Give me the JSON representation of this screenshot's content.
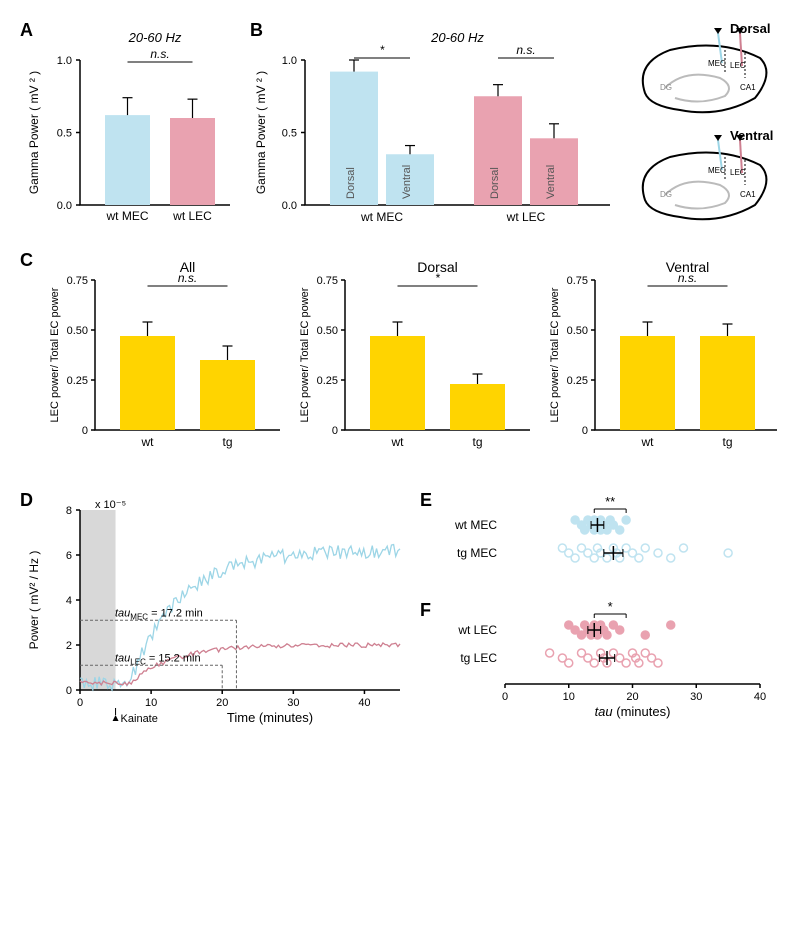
{
  "colors": {
    "mec_blue": "#bfe3f0",
    "lec_pink": "#e9a2b0",
    "yellow": "#ffd400",
    "grey": "#d8d8d8",
    "black": "#000000",
    "mec_line": "#9cd5e6",
    "lec_line": "#ce7f90"
  },
  "panelA": {
    "label": "A",
    "title": "20-60 Hz",
    "ylabel": "Gamma Power ( mV ² )",
    "ymax": 1.0,
    "yticks": [
      0,
      0.5,
      1.0
    ],
    "sig": "n.s.",
    "bars": [
      {
        "cat": "wt MEC",
        "val": 0.62,
        "err": 0.12,
        "color": "#bfe3f0"
      },
      {
        "cat": "wt LEC",
        "val": 0.6,
        "err": 0.13,
        "color": "#e9a2b0"
      }
    ]
  },
  "panelB": {
    "label": "B",
    "title": "20-60 Hz",
    "ylabel": "Gamma Power ( mV ² )",
    "ymax": 1.0,
    "yticks": [
      0,
      0.5,
      1.0
    ],
    "groups": [
      {
        "name": "wt MEC",
        "sig": "*",
        "bars": [
          {
            "cat": "Dorsal",
            "val": 0.92,
            "err": 0.08,
            "color": "#bfe3f0"
          },
          {
            "cat": "Ventral",
            "val": 0.35,
            "err": 0.06,
            "color": "#bfe3f0"
          }
        ]
      },
      {
        "name": "wt LEC",
        "sig": "n.s.",
        "bars": [
          {
            "cat": "Dorsal",
            "val": 0.75,
            "err": 0.08,
            "color": "#e9a2b0"
          },
          {
            "cat": "Ventral",
            "val": 0.46,
            "err": 0.1,
            "color": "#e9a2b0"
          }
        ]
      }
    ],
    "diagramLabels": {
      "dorsal": "Dorsal",
      "ventral": "Ventral",
      "mec": "MEC",
      "lec": "LEC",
      "ca1": "CA1",
      "dg": "DG"
    }
  },
  "panelC": {
    "label": "C",
    "ylabel": "LEC power/ Total EC power",
    "ymax": 0.75,
    "yticks": [
      0,
      0.25,
      0.5,
      0.75
    ],
    "sub": [
      {
        "title": "All",
        "sig": "n.s.",
        "bars": [
          {
            "cat": "wt",
            "val": 0.47,
            "err": 0.07
          },
          {
            "cat": "tg",
            "val": 0.35,
            "err": 0.07
          }
        ]
      },
      {
        "title": "Dorsal",
        "sig": "*",
        "bars": [
          {
            "cat": "wt",
            "val": 0.47,
            "err": 0.07
          },
          {
            "cat": "tg",
            "val": 0.23,
            "err": 0.05
          }
        ]
      },
      {
        "title": "Ventral",
        "sig": "n.s.",
        "bars": [
          {
            "cat": "wt",
            "val": 0.47,
            "err": 0.07
          },
          {
            "cat": "tg",
            "val": 0.47,
            "err": 0.06
          }
        ]
      }
    ],
    "barColor": "#ffd400"
  },
  "panelD": {
    "label": "D",
    "ylabel": "Power ( mV² / Hz )",
    "xlabel": "Time (minutes)",
    "yscaleText": "x 10⁻⁵",
    "ymax": 8,
    "yticks": [
      0,
      2,
      4,
      6,
      8
    ],
    "xmax": 45,
    "xticks": [
      0,
      10,
      20,
      30,
      40
    ],
    "kainateLabel": "Kainate",
    "kainateX": 5,
    "tauMecLabel": "tau_MEC = 17.2 min",
    "tauLecLabel": "tau_LEC = 15.2 min",
    "tauMecX": 22,
    "tauMecY": 3.1,
    "tauLecX": 20,
    "tauLecY": 1.1,
    "mecColor": "#9cd5e6",
    "lecColor": "#ce7f90",
    "greyEnd": 5
  },
  "panelE": {
    "label": "E",
    "sig": "**",
    "rows": [
      {
        "name": "wt MEC",
        "solid": true,
        "color": "#bfe3f0",
        "pts": [
          11,
          12,
          12.5,
          13,
          13.5,
          14,
          14,
          14.5,
          15,
          15,
          15.5,
          16,
          16.5,
          17,
          18,
          19
        ],
        "mean": 14.5,
        "err": 1.0
      },
      {
        "name": "tg MEC",
        "solid": false,
        "color": "#bfe3f0",
        "pts": [
          9,
          10,
          11,
          12,
          13,
          14,
          14.5,
          15,
          16,
          17,
          17.5,
          18,
          19,
          20,
          21,
          22,
          24,
          26,
          28,
          35
        ],
        "mean": 17,
        "err": 1.5
      }
    ]
  },
  "panelF": {
    "label": "F",
    "sig": "*",
    "xlabel": "tau (minutes)",
    "xticks": [
      0,
      10,
      20,
      30,
      40
    ],
    "rows": [
      {
        "name": "wt LEC",
        "solid": true,
        "color": "#e9a2b0",
        "pts": [
          10,
          11,
          12,
          12.5,
          13,
          13.5,
          14,
          14,
          14.5,
          15,
          15.5,
          16,
          17,
          18,
          22,
          26
        ],
        "mean": 14,
        "err": 1.0
      },
      {
        "name": "tg LEC",
        "solid": false,
        "color": "#e9a2b0",
        "pts": [
          7,
          9,
          10,
          12,
          13,
          14,
          15,
          15.5,
          16,
          17,
          18,
          19,
          20,
          20.5,
          21,
          22,
          23,
          24
        ],
        "mean": 16,
        "err": 1.2
      }
    ]
  }
}
